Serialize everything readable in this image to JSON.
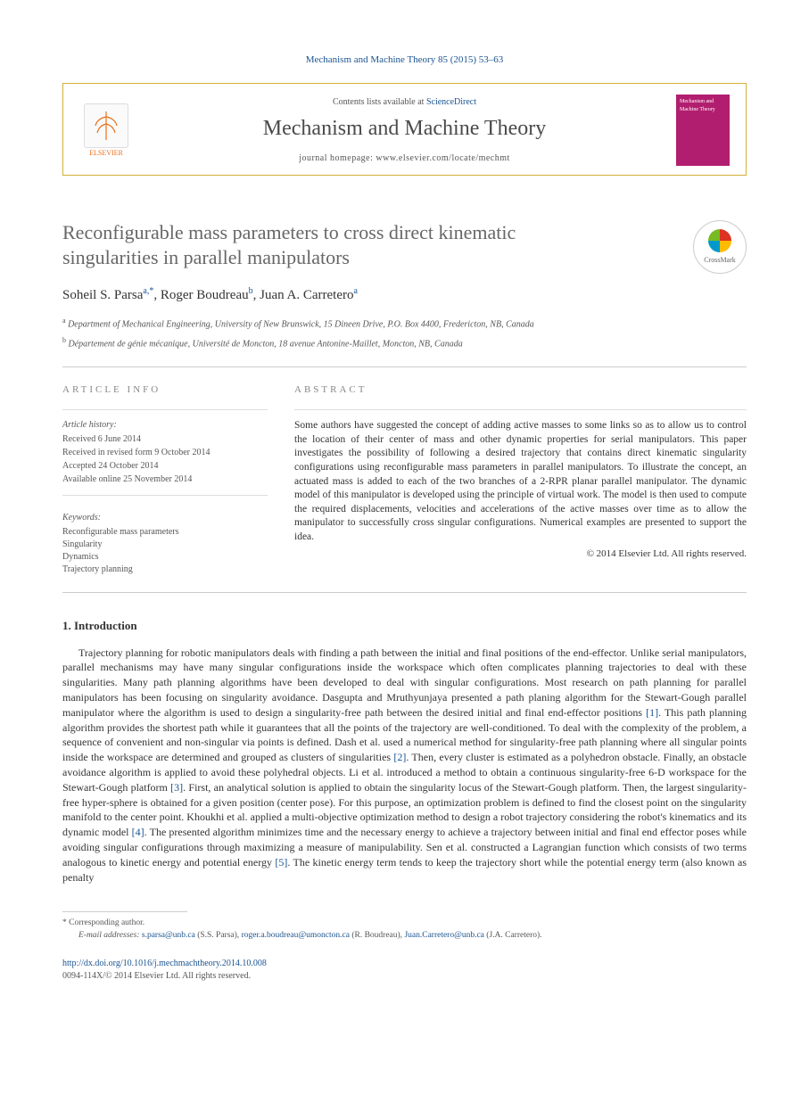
{
  "citation": "Mechanism and Machine Theory 85 (2015) 53–63",
  "header": {
    "contents_prefix": "Contents lists available at ",
    "contents_link": "ScienceDirect",
    "journal": "Mechanism and Machine Theory",
    "homepage_prefix": "journal homepage: ",
    "homepage_url": "www.elsevier.com/locate/mechmt",
    "publisher": "ELSEVIER",
    "cover_text": "Mechanism and Machine Theory"
  },
  "title": "Reconfigurable mass parameters to cross direct kinematic singularities in parallel manipulators",
  "crossmark": "CrossMark",
  "authors_html": "Soheil S. Parsa",
  "author1": {
    "name": "Soheil S. Parsa",
    "aff": "a,",
    "star": "*"
  },
  "author2": {
    "name": "Roger Boudreau",
    "aff": "b"
  },
  "author3": {
    "name": "Juan A. Carretero",
    "aff": "a"
  },
  "affiliations": [
    {
      "sup": "a",
      "text": " Department of Mechanical Engineering, University of New Brunswick, 15 Dineen Drive, P.O. Box 4400, Fredericton, NB, Canada"
    },
    {
      "sup": "b",
      "text": " Département de génie mécanique, Université de Moncton, 18 avenue Antonine-Maillet, Moncton, NB, Canada"
    }
  ],
  "info": {
    "label": "ARTICLE INFO",
    "history_label": "Article history:",
    "history": [
      "Received 6 June 2014",
      "Received in revised form 9 October 2014",
      "Accepted 24 October 2014",
      "Available online 25 November 2014"
    ],
    "keywords_label": "Keywords:",
    "keywords": [
      "Reconfigurable mass parameters",
      "Singularity",
      "Dynamics",
      "Trajectory planning"
    ]
  },
  "abstract": {
    "label": "ABSTRACT",
    "text": "Some authors have suggested the concept of adding active masses to some links so as to allow us to control the location of their center of mass and other dynamic properties for serial manipulators. This paper investigates the possibility of following a desired trajectory that contains direct kinematic singularity configurations using reconfigurable mass parameters in parallel manipulators. To illustrate the concept, an actuated mass is added to each of the two branches of a 2-RPR planar parallel manipulator. The dynamic model of this manipulator is developed using the principle of virtual work. The model is then used to compute the required displacements, velocities and accelerations of the active masses over time as to allow the manipulator to successfully cross singular configurations. Numerical examples are presented to support the idea.",
    "copyright": "© 2014 Elsevier Ltd. All rights reserved."
  },
  "intro": {
    "heading": "1. Introduction",
    "p1a": "Trajectory planning for robotic manipulators deals with finding a path between the initial and final positions of the end-effector. Unlike serial manipulators, parallel mechanisms may have many singular configurations inside the workspace which often complicates planning trajectories to deal with these singularities. Many path planning algorithms have been developed to deal with singular configurations. Most research on path planning for parallel manipulators has been focusing on singularity avoidance. Dasgupta and Mruthyunjaya presented a path planing algorithm for the Stewart-Gough parallel manipulator where the algorithm is used to design a singularity-free path between the desired initial and final end-effector positions ",
    "ref1": "[1]",
    "p1b": ". This path planning algorithm provides the shortest path while it guarantees that all the points of the trajectory are well-conditioned. To deal with the complexity of the problem, a sequence of convenient and non-singular via points is defined. Dash et al. used a numerical method for singularity-free path planning where all singular points inside the workspace are determined and grouped as clusters of singularities ",
    "ref2": "[2]",
    "p1c": ". Then, every cluster is estimated as a polyhedron obstacle. Finally, an obstacle avoidance algorithm is applied to avoid these polyhedral objects. Li et al. introduced a method to obtain a continuous singularity-free 6-D workspace for the Stewart-Gough platform ",
    "ref3": "[3]",
    "p1d": ". First, an analytical solution is applied to obtain the singularity locus of the Stewart-Gough platform. Then, the largest singularity-free hyper-sphere is obtained for a given position (center pose). For this purpose, an optimization problem is defined to find the closest point on the singularity manifold to the center point. Khoukhi et al. applied a multi-objective optimization method to design a robot trajectory considering the robot's kinematics and its dynamic model ",
    "ref4": "[4]",
    "p1e": ". The presented algorithm minimizes time and the necessary energy to achieve a trajectory between initial and final end effector poses while avoiding singular configurations through maximizing a measure of manipulability. Sen et al. constructed a Lagrangian function which consists of two terms analogous to kinetic energy and potential energy ",
    "ref5": "[5]",
    "p1f": ". The kinetic energy term tends to keep the trajectory short while the potential energy term (also known as penalty"
  },
  "footnote": {
    "star": "*",
    "corr_label": " Corresponding author.",
    "email_label": "E-mail addresses: ",
    "e1": "s.parsa@unb.ca",
    "n1": " (S.S. Parsa), ",
    "e2": "roger.a.boudreau@umoncton.ca",
    "n2": " (R. Boudreau), ",
    "e3": "Juan.Carretero@unb.ca",
    "n3": " (J.A. Carretero)."
  },
  "doi": {
    "url": "http://dx.doi.org/10.1016/j.mechmachtheory.2014.10.008",
    "line2": "0094-114X/© 2014 Elsevier Ltd. All rights reserved."
  }
}
